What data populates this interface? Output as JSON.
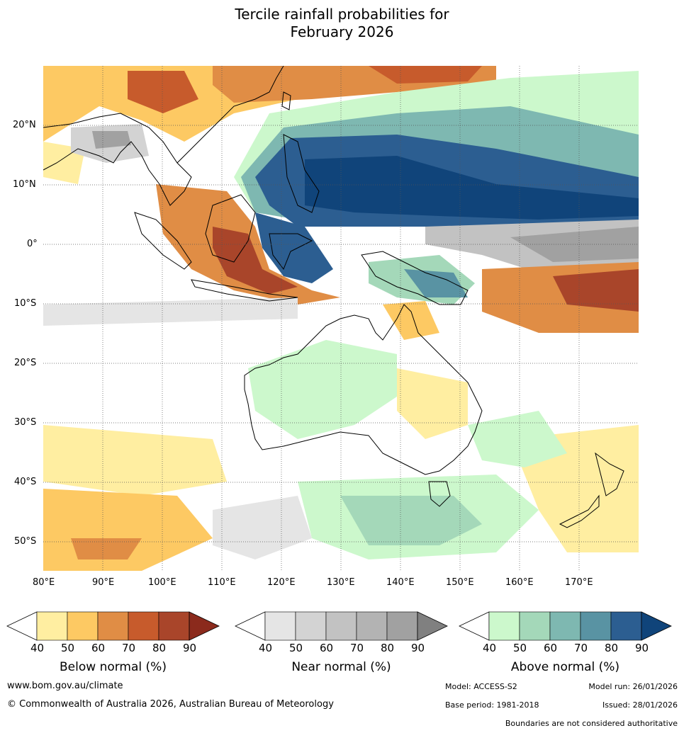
{
  "title": {
    "line1": "Tercile rainfall probabilities for",
    "line2": "February 2026"
  },
  "map": {
    "lon_labels": [
      "80°E",
      "90°E",
      "100°E",
      "110°E",
      "120°E",
      "130°E",
      "140°E",
      "150°E",
      "160°E",
      "170°E"
    ],
    "lat_labels": [
      "20°N",
      "10°N",
      "0°",
      "10°S",
      "20°S",
      "30°S",
      "40°S",
      "50°S"
    ]
  },
  "colorbars": [
    {
      "label": "Below normal (%)",
      "ticks": [
        "40",
        "50",
        "60",
        "70",
        "80",
        "90"
      ],
      "colors": [
        "#ffeea1",
        "#fdc963",
        "#e08d45",
        "#c75b2c",
        "#a9452a",
        "#8b2a1c"
      ]
    },
    {
      "label": "Near normal (%)",
      "ticks": [
        "40",
        "50",
        "60",
        "70",
        "80",
        "90"
      ],
      "colors": [
        "#e5e5e5",
        "#d3d3d3",
        "#c2c2c2",
        "#b3b3b3",
        "#a1a1a1",
        "#808080"
      ]
    },
    {
      "label": "Above normal (%)",
      "ticks": [
        "40",
        "50",
        "60",
        "70",
        "80",
        "90"
      ],
      "colors": [
        "#ccf8cc",
        "#a4d8b9",
        "#7eb8b1",
        "#5993a3",
        "#2c5e91",
        "#10447a"
      ]
    }
  ],
  "footer": {
    "website": "www.bom.gov.au/climate",
    "copyright": "© Commonwealth of Australia 2026, Australian Bureau of Meteorology",
    "model": "Model: ACCESS-S2",
    "model_run": "Model run: 26/01/2026",
    "base_period": "Base period: 1981-2018",
    "issued": "Issued: 28/01/2026",
    "disclaimer": "Boundaries are not considered authoritative"
  }
}
